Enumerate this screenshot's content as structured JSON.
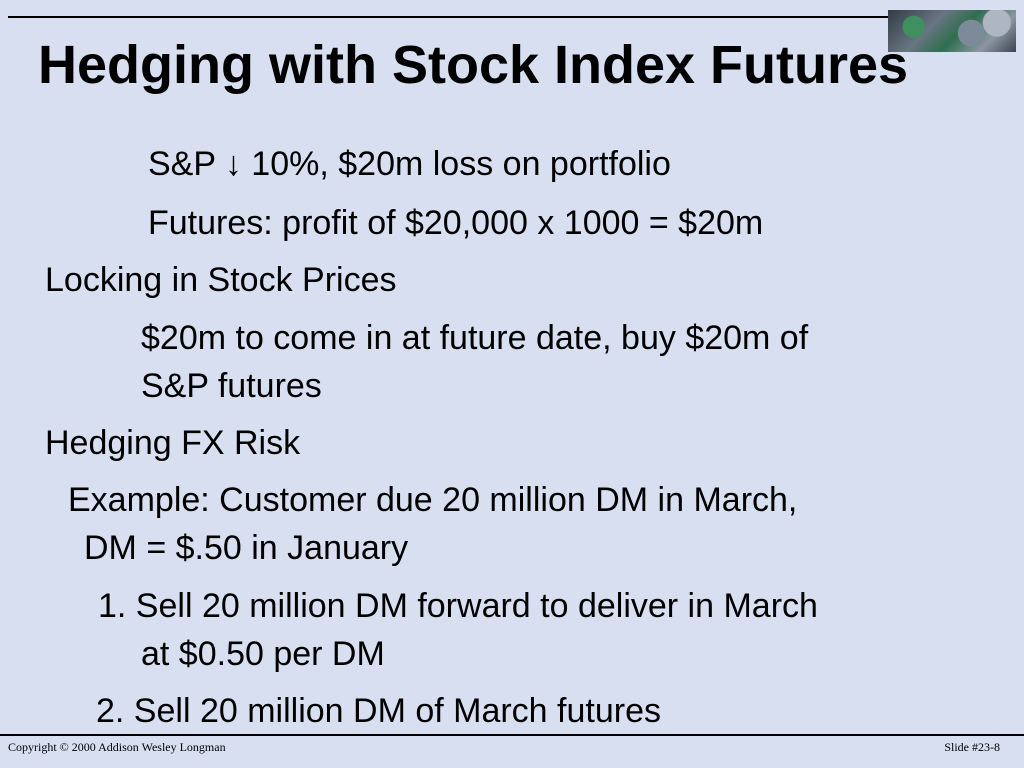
{
  "slide": {
    "title": "Hedging with Stock Index Futures",
    "lines": [
      "S&P ↓ 10%, $20m loss on portfolio",
      "Futures: profit of $20,000 x 1000 = $20m",
      "Locking in Stock Prices",
      "$20m to come in at future date, buy $20m of",
      "S&P futures",
      "Hedging FX Risk",
      "Example:  Customer due 20 million DM in March,",
      "DM = $.50 in January",
      "1. Sell 20 million DM forward to deliver in March",
      "at $0.50 per DM",
      "2. Sell 20 million DM of March futures"
    ],
    "footer": {
      "copyright": "Copyright © 2000 Addison Wesley Longman",
      "slide_number": "Slide #23-8"
    }
  }
}
